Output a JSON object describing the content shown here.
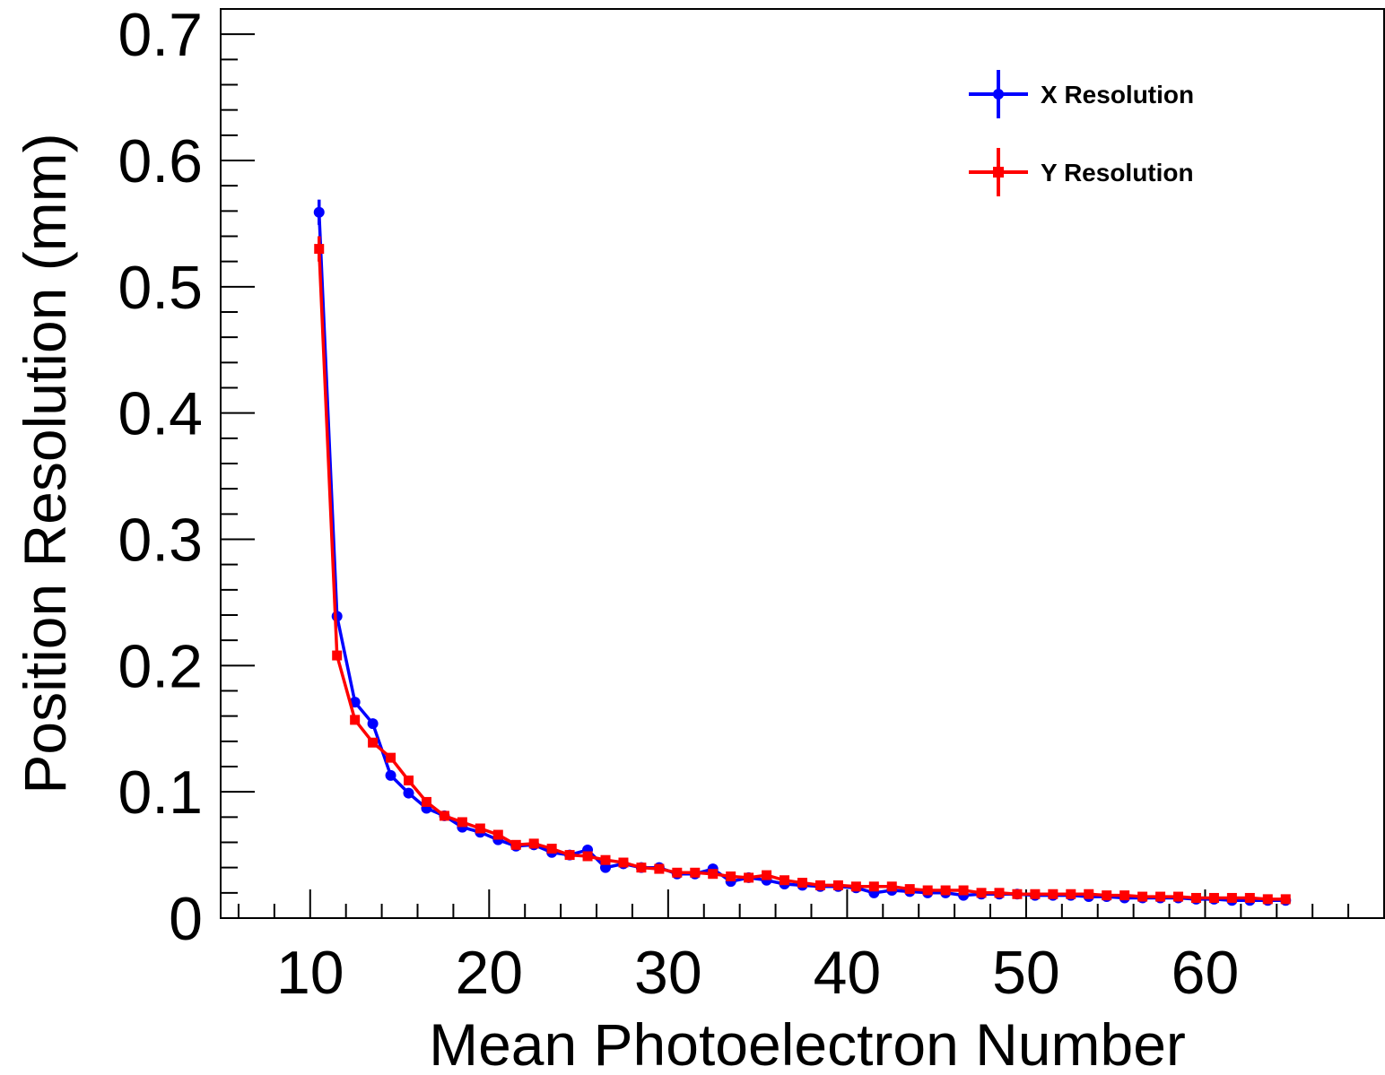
{
  "chart_data": {
    "type": "line",
    "title": "",
    "xlabel": "Mean Photoelectron Number",
    "ylabel": "Position Resolution (mm)",
    "xlim": [
      5,
      70
    ],
    "ylim": [
      0,
      0.72
    ],
    "x_ticks": [
      10,
      20,
      30,
      40,
      50,
      60
    ],
    "x_tick_labels": [
      "10",
      "20",
      "30",
      "40",
      "50",
      "60"
    ],
    "y_ticks": [
      0,
      0.1,
      0.2,
      0.3,
      0.4,
      0.5,
      0.6,
      0.7
    ],
    "y_tick_labels": [
      "0",
      "0.1",
      "0.2",
      "0.3",
      "0.4",
      "0.5",
      "0.6",
      "0.7"
    ],
    "grid": false,
    "legend": {
      "position": "top-right"
    },
    "series": [
      {
        "name": "X Resolution",
        "color": "#0000ff",
        "marker": "circle",
        "x": [
          10.5,
          11.5,
          12.5,
          13.5,
          14.5,
          15.5,
          16.5,
          17.5,
          18.5,
          19.5,
          20.5,
          21.5,
          22.5,
          23.5,
          24.5,
          25.5,
          26.5,
          27.5,
          28.5,
          29.5,
          30.5,
          31.5,
          32.5,
          33.5,
          34.5,
          35.5,
          36.5,
          37.5,
          38.5,
          39.5,
          40.5,
          41.5,
          42.5,
          43.5,
          44.5,
          45.5,
          46.5,
          47.5,
          48.5,
          49.5,
          50.5,
          51.5,
          52.5,
          53.5,
          54.5,
          55.5,
          56.5,
          57.5,
          58.5,
          59.5,
          60.5,
          61.5,
          62.5,
          63.5,
          64.5
        ],
        "y": [
          0.559,
          0.239,
          0.171,
          0.154,
          0.113,
          0.099,
          0.087,
          0.081,
          0.072,
          0.068,
          0.062,
          0.057,
          0.058,
          0.052,
          0.05,
          0.054,
          0.04,
          0.043,
          0.04,
          0.04,
          0.035,
          0.035,
          0.039,
          0.029,
          0.032,
          0.03,
          0.027,
          0.026,
          0.025,
          0.025,
          0.024,
          0.02,
          0.022,
          0.021,
          0.02,
          0.02,
          0.018,
          0.019,
          0.019,
          0.019,
          0.018,
          0.018,
          0.018,
          0.017,
          0.017,
          0.016,
          0.016,
          0.016,
          0.016,
          0.015,
          0.015,
          0.014,
          0.014,
          0.014,
          0.014
        ],
        "y_err_first": 0.01
      },
      {
        "name": "Y Resolution",
        "color": "#ff0000",
        "marker": "square",
        "x": [
          10.5,
          11.5,
          12.5,
          13.5,
          14.5,
          15.5,
          16.5,
          17.5,
          18.5,
          19.5,
          20.5,
          21.5,
          22.5,
          23.5,
          24.5,
          25.5,
          26.5,
          27.5,
          28.5,
          29.5,
          30.5,
          31.5,
          32.5,
          33.5,
          34.5,
          35.5,
          36.5,
          37.5,
          38.5,
          39.5,
          40.5,
          41.5,
          42.5,
          43.5,
          44.5,
          45.5,
          46.5,
          47.5,
          48.5,
          49.5,
          50.5,
          51.5,
          52.5,
          53.5,
          54.5,
          55.5,
          56.5,
          57.5,
          58.5,
          59.5,
          60.5,
          61.5,
          62.5,
          63.5,
          64.5
        ],
        "y": [
          0.53,
          0.208,
          0.157,
          0.139,
          0.127,
          0.109,
          0.092,
          0.081,
          0.076,
          0.071,
          0.066,
          0.058,
          0.059,
          0.055,
          0.05,
          0.049,
          0.046,
          0.044,
          0.04,
          0.039,
          0.036,
          0.036,
          0.035,
          0.033,
          0.032,
          0.034,
          0.03,
          0.028,
          0.026,
          0.026,
          0.025,
          0.025,
          0.025,
          0.023,
          0.022,
          0.022,
          0.022,
          0.02,
          0.02,
          0.019,
          0.019,
          0.019,
          0.019,
          0.019,
          0.018,
          0.018,
          0.017,
          0.017,
          0.017,
          0.016,
          0.016,
          0.016,
          0.016,
          0.015,
          0.015
        ],
        "y_err_first": 0.01
      }
    ]
  }
}
